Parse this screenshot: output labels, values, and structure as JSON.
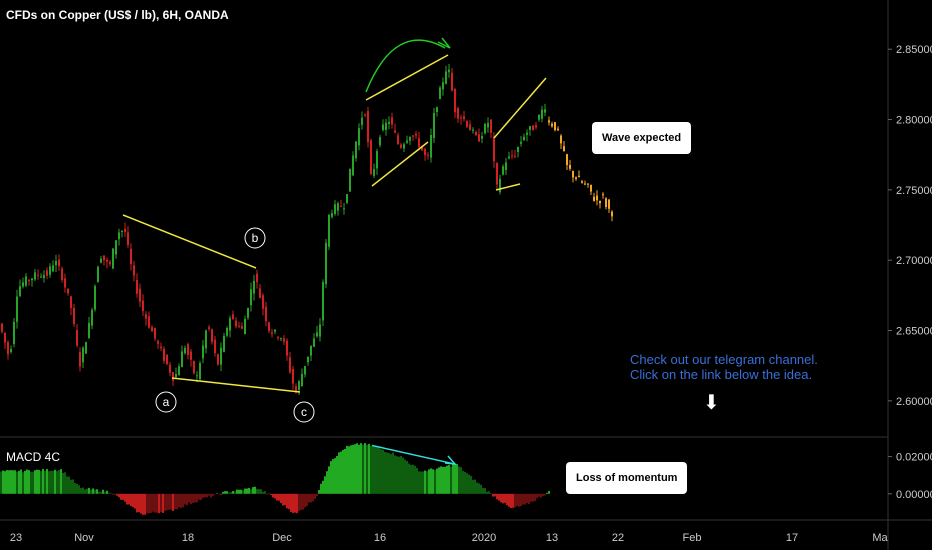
{
  "title": "CFDs on Copper (US$ / lb), 6H, OANDA",
  "macd_title": "MACD 4C",
  "callouts": {
    "wave": "Wave expected",
    "momentum": "Loss of momentum"
  },
  "note": {
    "line1": "Check out our telegram channel.",
    "line2": "Click on the link below the idea."
  },
  "wave_labels": [
    "a",
    "b",
    "c"
  ],
  "colors": {
    "up": "#26a526",
    "down": "#d42020",
    "projection": "#f5a623",
    "trendline": "#f2e640",
    "arc": "#22cc22",
    "divergence": "#33dddd",
    "macd_pos_strong": "#22aa22",
    "macd_pos_weak": "#0f5e0f",
    "macd_neg_strong": "#c21d1d",
    "macd_neg_weak": "#6a1010"
  },
  "chart_data": {
    "type": "candlestick",
    "price_axis": {
      "range": [
        2.575,
        2.885
      ],
      "ticks": [
        "2.85000",
        "2.80000",
        "2.75000",
        "2.70000",
        "2.65000",
        "2.60000"
      ]
    },
    "macd_axis": {
      "range": [
        -0.013,
        0.03
      ],
      "ticks": [
        "0.02000",
        "0.00000"
      ]
    },
    "time_axis": {
      "labels": [
        "23",
        "Nov",
        "18",
        "Dec",
        "16",
        "2020",
        "13",
        "22",
        "Feb",
        "17",
        "Ma"
      ]
    },
    "price_path": [
      [
        0,
        2.655
      ],
      [
        10,
        2.63
      ],
      [
        18,
        2.68
      ],
      [
        25,
        2.685
      ],
      [
        38,
        2.69
      ],
      [
        48,
        2.69
      ],
      [
        55,
        2.7
      ],
      [
        62,
        2.69
      ],
      [
        72,
        2.665
      ],
      [
        80,
        2.625
      ],
      [
        90,
        2.655
      ],
      [
        100,
        2.705
      ],
      [
        110,
        2.695
      ],
      [
        118,
        2.72
      ],
      [
        125,
        2.722
      ],
      [
        133,
        2.69
      ],
      [
        143,
        2.665
      ],
      [
        155,
        2.645
      ],
      [
        168,
        2.625
      ],
      [
        175,
        2.615
      ],
      [
        185,
        2.64
      ],
      [
        197,
        2.615
      ],
      [
        208,
        2.655
      ],
      [
        218,
        2.625
      ],
      [
        230,
        2.66
      ],
      [
        243,
        2.65
      ],
      [
        255,
        2.69
      ],
      [
        262,
        2.67
      ],
      [
        270,
        2.65
      ],
      [
        283,
        2.645
      ],
      [
        296,
        2.605
      ],
      [
        305,
        2.625
      ],
      [
        312,
        2.64
      ],
      [
        320,
        2.65
      ],
      [
        325,
        2.7
      ],
      [
        330,
        2.735
      ],
      [
        345,
        2.74
      ],
      [
        355,
        2.78
      ],
      [
        365,
        2.81
      ],
      [
        372,
        2.755
      ],
      [
        380,
        2.79
      ],
      [
        390,
        2.8
      ],
      [
        400,
        2.78
      ],
      [
        410,
        2.79
      ],
      [
        418,
        2.785
      ],
      [
        428,
        2.77
      ],
      [
        435,
        2.805
      ],
      [
        448,
        2.84
      ],
      [
        456,
        2.805
      ],
      [
        465,
        2.8
      ],
      [
        478,
        2.785
      ],
      [
        490,
        2.8
      ],
      [
        497,
        2.75
      ],
      [
        505,
        2.77
      ],
      [
        515,
        2.775
      ],
      [
        525,
        2.79
      ],
      [
        535,
        2.795
      ],
      [
        545,
        2.81
      ]
    ],
    "projection_path": [
      [
        548,
        2.8
      ],
      [
        556,
        2.795
      ],
      [
        562,
        2.78
      ],
      [
        568,
        2.765
      ],
      [
        575,
        2.76
      ],
      [
        582,
        2.755
      ],
      [
        590,
        2.75
      ],
      [
        596,
        2.742
      ],
      [
        603,
        2.745
      ],
      [
        610,
        2.735
      ]
    ],
    "macd_profile": [
      [
        0,
        0.012
      ],
      [
        60,
        0.013
      ],
      [
        80,
        0.003
      ],
      [
        110,
        0.001
      ],
      [
        140,
        -0.011
      ],
      [
        170,
        -0.009
      ],
      [
        200,
        -0.003
      ],
      [
        225,
        0.001
      ],
      [
        240,
        0.002
      ],
      [
        255,
        0.0035
      ],
      [
        270,
        -0.001
      ],
      [
        295,
        -0.011
      ],
      [
        315,
        -0.002
      ],
      [
        330,
        0.018
      ],
      [
        345,
        0.025
      ],
      [
        360,
        0.027
      ],
      [
        370,
        0.026
      ],
      [
        400,
        0.02
      ],
      [
        420,
        0.012
      ],
      [
        440,
        0.014
      ],
      [
        455,
        0.016
      ],
      [
        470,
        0.009
      ],
      [
        490,
        0.0
      ],
      [
        510,
        -0.008
      ],
      [
        525,
        -0.006
      ],
      [
        548,
        0.001
      ]
    ],
    "divergence_line": [
      [
        372,
        0.026
      ],
      [
        455,
        0.016
      ]
    ]
  }
}
